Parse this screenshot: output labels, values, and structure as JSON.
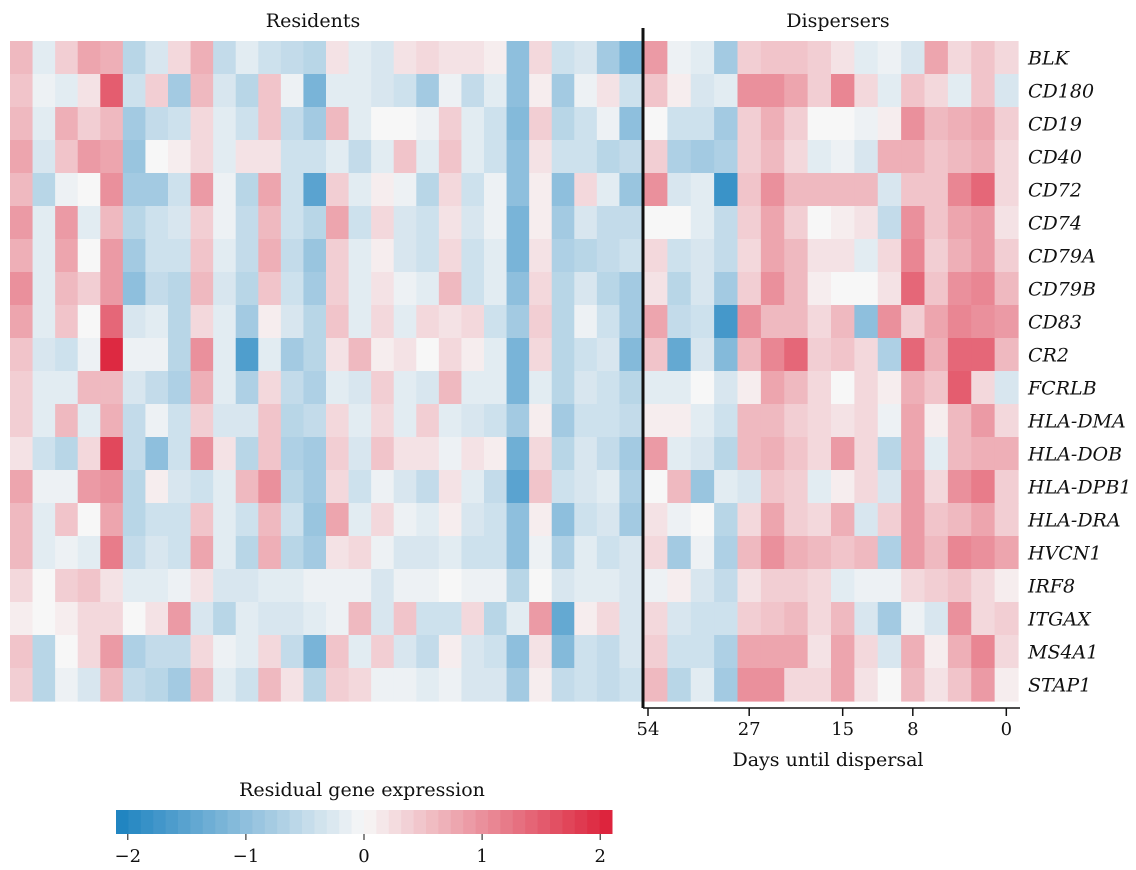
{
  "chart_data": {
    "type": "heatmap",
    "panels": [
      {
        "title": "Residents",
        "columns": 28
      },
      {
        "title": "Dispersers",
        "columns": 16
      }
    ],
    "genes": [
      "BLK",
      "CD180",
      "CD19",
      "CD40",
      "CD72",
      "CD74",
      "CD79A",
      "CD79B",
      "CD83",
      "CR2",
      "FCRLB",
      "HLA-DMA",
      "HLA-DOB",
      "HLA-DPB1",
      "HLA-DRA",
      "HVCN1",
      "IRF8",
      "ITGAX",
      "MS4A1",
      "STAP1"
    ],
    "x_axis": {
      "label": "Days until dispersal",
      "ticks": [
        {
          "label": "54",
          "column": 0
        },
        {
          "label": "27",
          "column": 4.5
        },
        {
          "label": "15",
          "column": 8.5
        },
        {
          "label": "8",
          "column": 11.5
        },
        {
          "label": "0",
          "column": 15.5
        }
      ]
    },
    "colorbar": {
      "label": "Residual gene expression",
      "range": [
        -2.1,
        2.1
      ],
      "ticks": [
        {
          "value": -2,
          "label": "−2"
        },
        {
          "value": -1,
          "label": "−1"
        },
        {
          "value": 0,
          "label": "0"
        },
        {
          "value": 1,
          "label": "1"
        },
        {
          "value": 2,
          "label": "2"
        }
      ],
      "colors": {
        "low": "#1b82c0",
        "mid": "#f7f7f7",
        "high": "#dc1f38"
      }
    },
    "residents": [
      [
        0.6,
        -0.2,
        0.4,
        0.8,
        0.7,
        -0.6,
        -0.3,
        0.3,
        0.7,
        -0.5,
        -0.2,
        -0.4,
        -0.5,
        -0.6,
        0.2,
        -0.2,
        -0.3,
        0.2,
        0.3,
        0.2,
        0.2,
        0.1,
        -1.0,
        0.3,
        -0.4,
        -0.3,
        -0.8,
        -1.2
      ],
      [
        0.5,
        -0.1,
        -0.2,
        0.2,
        1.5,
        -0.4,
        0.4,
        -0.8,
        0.6,
        -0.3,
        -0.6,
        0.5,
        -0.1,
        -1.2,
        -0.2,
        -0.2,
        -0.3,
        -0.4,
        -0.8,
        -0.1,
        -0.5,
        -0.2,
        -1.0,
        0.1,
        -0.8,
        -0.1,
        0.2,
        -0.4
      ],
      [
        0.6,
        -0.2,
        0.7,
        0.4,
        0.6,
        -0.8,
        -0.5,
        -0.4,
        0.3,
        -0.2,
        -0.4,
        0.5,
        -0.5,
        -0.8,
        0.6,
        -0.2,
        0.0,
        0.0,
        -0.1,
        0.4,
        -0.2,
        -0.4,
        -1.1,
        0.4,
        -0.6,
        -0.4,
        -0.1,
        -1.0
      ],
      [
        0.8,
        -0.3,
        0.5,
        0.9,
        0.8,
        -0.9,
        0.0,
        0.1,
        0.3,
        -0.2,
        0.2,
        0.2,
        -0.4,
        -0.4,
        -0.2,
        -0.5,
        -0.2,
        0.5,
        -0.2,
        0.5,
        -0.2,
        -0.4,
        -1.0,
        0.2,
        -0.4,
        -0.4,
        -0.6,
        -0.5
      ],
      [
        0.6,
        -0.6,
        -0.1,
        0.0,
        1.0,
        -0.8,
        -0.8,
        -0.4,
        0.9,
        -0.1,
        -0.6,
        0.8,
        -0.4,
        -1.5,
        0.4,
        -0.2,
        0.1,
        -0.1,
        -0.6,
        0.3,
        -0.4,
        -0.1,
        -1.0,
        0.1,
        -1.0,
        0.3,
        -0.2,
        -0.9
      ],
      [
        0.9,
        -0.2,
        0.9,
        -0.2,
        0.6,
        -0.6,
        -0.4,
        -0.3,
        0.4,
        -0.1,
        -0.5,
        0.6,
        -0.4,
        -0.6,
        0.8,
        -0.4,
        0.3,
        -0.3,
        -0.4,
        0.2,
        -0.3,
        -0.1,
        -1.2,
        0.1,
        -0.8,
        -0.3,
        -0.5,
        -0.5
      ],
      [
        0.7,
        -0.2,
        0.8,
        0.0,
        0.9,
        -0.8,
        -0.4,
        -0.4,
        0.5,
        -0.2,
        -0.5,
        0.7,
        -0.5,
        -0.9,
        0.4,
        -0.2,
        0.1,
        -0.3,
        -0.4,
        0.3,
        -0.4,
        -0.2,
        -1.2,
        0.2,
        -0.7,
        -0.6,
        -0.5,
        -0.4
      ],
      [
        1.0,
        -0.2,
        0.6,
        0.4,
        0.9,
        -1.0,
        -0.5,
        -0.6,
        0.6,
        -0.3,
        -0.6,
        0.5,
        -0.4,
        -0.8,
        0.4,
        -0.2,
        0.2,
        -0.1,
        -0.2,
        0.6,
        -0.4,
        -0.2,
        -1.0,
        0.3,
        -0.6,
        -0.3,
        -0.6,
        -0.8
      ],
      [
        0.8,
        -0.2,
        0.5,
        0.0,
        1.4,
        -0.3,
        -0.2,
        -0.6,
        0.3,
        -0.2,
        -0.8,
        0.1,
        -0.3,
        -0.6,
        0.5,
        -0.2,
        0.3,
        -0.2,
        0.3,
        0.2,
        0.3,
        -0.4,
        -0.8,
        0.4,
        -0.6,
        -0.1,
        -0.4,
        -0.8
      ],
      [
        0.5,
        -0.3,
        -0.4,
        -0.1,
        2.0,
        -0.1,
        -0.1,
        -0.6,
        1.0,
        -0.2,
        -1.6,
        -0.2,
        -0.8,
        -0.6,
        0.2,
        0.6,
        0.1,
        0.2,
        0.0,
        0.3,
        0.1,
        -0.2,
        -1.2,
        0.3,
        -0.6,
        -0.4,
        -0.3,
        -1.1
      ],
      [
        0.4,
        -0.2,
        -0.2,
        0.6,
        0.6,
        -0.3,
        -0.5,
        -0.7,
        0.7,
        -0.2,
        -0.7,
        0.3,
        -0.5,
        -0.7,
        -0.2,
        -0.3,
        0.4,
        -0.2,
        -0.3,
        0.6,
        -0.2,
        -0.2,
        -1.2,
        -0.2,
        -0.6,
        -0.3,
        -0.4,
        -0.6
      ],
      [
        0.4,
        -0.2,
        0.6,
        -0.2,
        0.7,
        -0.5,
        -0.1,
        -0.4,
        0.4,
        -0.3,
        -0.3,
        0.5,
        -0.6,
        -0.5,
        0.3,
        -0.2,
        0.3,
        -0.2,
        0.4,
        -0.2,
        -0.3,
        -0.4,
        -0.8,
        0.1,
        -0.8,
        -0.4,
        -0.4,
        -0.5
      ],
      [
        0.2,
        -0.4,
        -0.6,
        0.3,
        1.7,
        -0.5,
        -1.0,
        -0.4,
        1.0,
        0.2,
        -0.6,
        0.5,
        -0.7,
        -0.8,
        0.4,
        -0.3,
        0.5,
        0.2,
        0.2,
        -0.1,
        0.2,
        0.1,
        -1.3,
        0.3,
        -0.6,
        -0.3,
        -0.5,
        -0.8
      ],
      [
        0.8,
        -0.1,
        -0.1,
        0.9,
        1.0,
        -0.6,
        0.1,
        -0.3,
        -0.4,
        -0.2,
        0.6,
        1.0,
        -0.6,
        -0.8,
        0.3,
        -0.4,
        -0.1,
        -0.3,
        -0.5,
        0.2,
        -0.2,
        -0.5,
        -1.5,
        0.5,
        -0.4,
        -0.3,
        -0.2,
        -0.7
      ],
      [
        0.6,
        -0.2,
        0.5,
        0.0,
        0.8,
        -0.6,
        -0.4,
        -0.4,
        0.5,
        -0.2,
        -0.4,
        0.6,
        -0.4,
        -0.9,
        0.8,
        -0.2,
        0.3,
        -0.1,
        -0.2,
        0.1,
        -0.3,
        -0.4,
        -1.0,
        0.1,
        -1.0,
        -0.4,
        -0.3,
        -0.8
      ],
      [
        0.6,
        -0.2,
        -0.1,
        -0.2,
        1.2,
        -0.5,
        -0.3,
        -0.4,
        0.8,
        -0.2,
        -0.6,
        0.7,
        -0.6,
        -0.8,
        0.2,
        0.3,
        -0.1,
        -0.3,
        -0.3,
        -0.2,
        -0.4,
        -0.4,
        -1.0,
        -0.1,
        -0.7,
        -0.2,
        -0.4,
        -0.3
      ],
      [
        0.3,
        0.0,
        0.4,
        0.5,
        0.2,
        -0.2,
        -0.2,
        -0.1,
        0.2,
        -0.3,
        -0.3,
        -0.2,
        -0.2,
        -0.1,
        -0.1,
        -0.1,
        -0.3,
        -0.1,
        -0.1,
        0.0,
        -0.1,
        -0.1,
        -0.6,
        0.0,
        -0.3,
        -0.2,
        -0.2,
        -0.3
      ],
      [
        0.1,
        0.0,
        0.1,
        0.3,
        0.3,
        0.0,
        0.2,
        0.9,
        -0.3,
        -0.6,
        -0.2,
        -0.3,
        -0.3,
        -0.2,
        -0.1,
        0.6,
        -0.3,
        0.5,
        -0.4,
        -0.4,
        0.3,
        -0.6,
        -0.2,
        0.9,
        -1.4,
        0.1,
        0.3,
        -0.3
      ],
      [
        0.5,
        -0.6,
        0.0,
        0.3,
        0.9,
        -0.7,
        -0.5,
        -0.5,
        0.3,
        -0.1,
        -0.2,
        0.3,
        -0.5,
        -1.2,
        0.5,
        -0.2,
        0.4,
        -0.3,
        -0.5,
        0.1,
        -0.3,
        -0.4,
        -1.0,
        0.2,
        -1.1,
        -0.4,
        -0.5,
        -0.3
      ],
      [
        0.4,
        -0.6,
        -0.1,
        -0.3,
        0.6,
        -0.5,
        -0.6,
        -0.8,
        0.6,
        -0.2,
        -0.4,
        0.6,
        0.2,
        -0.6,
        0.4,
        0.3,
        -0.1,
        -0.1,
        -0.2,
        -0.1,
        -0.3,
        -0.3,
        -0.8,
        0.1,
        -0.5,
        -0.4,
        -0.5,
        -0.4
      ]
    ],
    "dispersers": [
      [
        0.9,
        -0.1,
        -0.2,
        -0.8,
        0.4,
        0.5,
        0.5,
        0.4,
        0.2,
        -0.2,
        -0.1,
        -0.3,
        0.8,
        0.3,
        0.5,
        0.3
      ],
      [
        0.5,
        0.1,
        -0.3,
        -0.2,
        1.0,
        1.0,
        0.8,
        0.4,
        1.1,
        0.3,
        -0.2,
        0.5,
        0.3,
        -0.2,
        0.5,
        -0.3
      ],
      [
        0.0,
        -0.4,
        -0.4,
        -0.8,
        0.4,
        0.7,
        0.4,
        0.0,
        0.0,
        -0.1,
        0.1,
        1.0,
        0.6,
        0.7,
        0.8,
        0.4
      ],
      [
        0.4,
        -0.7,
        -0.8,
        -0.7,
        0.4,
        0.6,
        0.3,
        -0.2,
        -0.1,
        -0.3,
        0.7,
        0.7,
        0.5,
        0.6,
        0.7,
        0.3
      ],
      [
        1.0,
        -0.3,
        -0.2,
        -1.8,
        0.5,
        1.0,
        0.6,
        0.6,
        0.6,
        0.6,
        -0.3,
        0.5,
        0.5,
        1.1,
        1.4,
        0.3
      ],
      [
        0.0,
        0.0,
        -0.2,
        -0.5,
        0.4,
        0.8,
        0.4,
        0.0,
        0.1,
        0.2,
        -0.5,
        1.0,
        0.5,
        0.8,
        0.9,
        0.2
      ],
      [
        0.3,
        -0.4,
        -0.3,
        -0.5,
        0.3,
        0.8,
        0.6,
        0.2,
        0.2,
        -0.2,
        0.3,
        1.1,
        0.4,
        0.7,
        0.9,
        0.4
      ],
      [
        0.2,
        -0.6,
        -0.3,
        -0.8,
        0.4,
        1.0,
        0.6,
        0.1,
        0.0,
        0.0,
        0.2,
        1.4,
        0.5,
        1.0,
        1.1,
        0.6
      ],
      [
        0.8,
        -0.5,
        -0.4,
        -1.7,
        1.0,
        0.6,
        0.6,
        0.3,
        0.6,
        -1.0,
        1.0,
        0.4,
        0.8,
        1.1,
        1.0,
        0.9
      ],
      [
        0.5,
        -1.4,
        -0.3,
        -1.1,
        0.6,
        1.1,
        1.4,
        0.4,
        0.5,
        0.3,
        -0.7,
        1.4,
        0.7,
        1.4,
        1.4,
        0.6
      ],
      [
        -0.2,
        -0.2,
        0.0,
        -0.3,
        0.1,
        0.8,
        0.6,
        0.3,
        0.0,
        0.3,
        0.1,
        0.7,
        0.5,
        1.5,
        0.3,
        -0.3
      ],
      [
        0.1,
        0.1,
        -0.2,
        -0.4,
        0.6,
        0.6,
        0.4,
        0.3,
        0.2,
        0.3,
        -0.1,
        0.8,
        0.1,
        0.6,
        0.9,
        0.3
      ],
      [
        0.9,
        -0.2,
        -0.3,
        -0.6,
        0.6,
        0.7,
        0.5,
        0.3,
        0.9,
        0.3,
        -0.6,
        0.8,
        -0.2,
        0.6,
        0.7,
        0.7
      ],
      [
        0.0,
        0.6,
        -0.9,
        -0.2,
        -0.3,
        0.5,
        0.4,
        -0.2,
        0.1,
        0.3,
        -0.3,
        0.9,
        0.3,
        1.0,
        1.2,
        0.4
      ],
      [
        0.2,
        -0.1,
        0.0,
        -0.6,
        0.3,
        0.8,
        0.4,
        0.3,
        0.7,
        -0.3,
        0.4,
        0.9,
        0.5,
        0.6,
        0.8,
        0.4
      ],
      [
        0.3,
        -0.8,
        -0.1,
        -0.7,
        0.6,
        1.0,
        0.7,
        0.6,
        0.5,
        0.6,
        -0.7,
        0.9,
        0.6,
        1.1,
        1.0,
        0.8
      ],
      [
        -0.1,
        0.1,
        -0.3,
        -0.5,
        0.2,
        0.4,
        0.4,
        0.3,
        -0.2,
        -0.1,
        -0.1,
        0.3,
        0.4,
        0.5,
        0.3,
        0.1
      ],
      [
        0.3,
        -0.3,
        -0.4,
        -0.4,
        0.4,
        0.5,
        0.6,
        0.3,
        0.6,
        -0.3,
        -0.8,
        -0.1,
        -0.3,
        1.0,
        0.3,
        0.4
      ],
      [
        0.4,
        -0.4,
        -0.4,
        -0.7,
        0.8,
        0.8,
        0.8,
        0.2,
        0.8,
        0.3,
        -0.3,
        0.7,
        0.1,
        0.7,
        1.1,
        0.3
      ],
      [
        0.6,
        -0.6,
        -0.2,
        -0.8,
        1.0,
        1.0,
        0.3,
        0.3,
        0.8,
        0.2,
        0.0,
        0.6,
        0.2,
        0.5,
        0.9,
        0.1
      ]
    ]
  }
}
